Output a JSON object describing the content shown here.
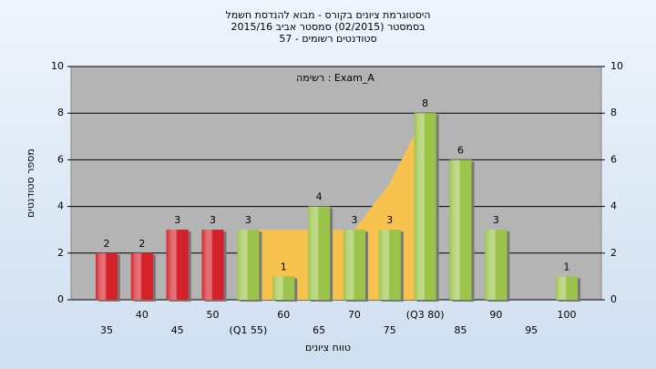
{
  "chart_data": {
    "type": "bar",
    "title": "היסטוגרמת ציונים בקורס - מבוא להנדסת חשמל",
    "subtitle": "בסמסטר  (02/2015)  סמסטר אביב 2015/16",
    "subtitle2": "סטודנטים רשומים - 57",
    "annotation": "רשימה : Exam_A",
    "x_label": "טווח ציונים",
    "y_label": "מספר סטודנטים",
    "categories": [
      "35",
      "40",
      "45",
      "50",
      "(Q1 55)",
      "60",
      "65",
      "70",
      "75",
      "(Q3 80)",
      "85",
      "90",
      "95",
      "100"
    ],
    "values": [
      2,
      2,
      3,
      3,
      3,
      1,
      4,
      3,
      3,
      8,
      6,
      3,
      null,
      1
    ],
    "colors": [
      "#d42028",
      "#d42028",
      "#d42028",
      "#d42028",
      "#9cc44a",
      "#9cc44a",
      "#9cc44a",
      "#9cc44a",
      "#9cc44a",
      "#9cc44a",
      "#9cc44a",
      "#9cc44a",
      "#9cc44a",
      "#9cc44a"
    ],
    "iqr_area": {
      "color": "#f7c24e",
      "values": [
        null,
        null,
        null,
        null,
        3,
        3,
        3,
        3,
        5,
        8,
        null,
        null,
        null,
        null
      ]
    },
    "ylim": [
      0,
      10
    ],
    "yticks": [
      0,
      2,
      4,
      6,
      8,
      10
    ],
    "grid": true
  }
}
